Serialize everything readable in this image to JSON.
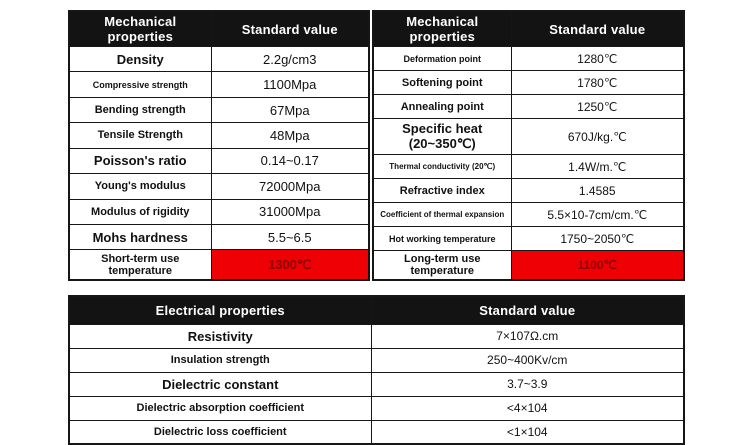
{
  "colors": {
    "border": "#161616",
    "header_bg": "#131313",
    "header_text": "#ffffff",
    "highlight_bg": "#ee0005",
    "highlight_text": "#8b0000"
  },
  "tables": {
    "mech_left": {
      "header": {
        "property": "Mechanical properties",
        "value": "Standard value"
      },
      "rows": [
        {
          "label": "Density",
          "value": "2.2g/cm3"
        },
        {
          "label": "Compressive strength",
          "value": "1100Mpa"
        },
        {
          "label": "Bending strength",
          "value": "67Mpa"
        },
        {
          "label": "Tensile Strength",
          "value": "48Mpa"
        },
        {
          "label": "Poisson's ratio",
          "value": "0.14~0.17"
        },
        {
          "label": "Young's modulus",
          "value": "72000Mpa"
        },
        {
          "label": "Modulus of rigidity",
          "value": "31000Mpa"
        },
        {
          "label": "Mohs hardness",
          "value": "5.5~6.5"
        },
        {
          "label": "Short-term use temperature",
          "value": "1300℃",
          "highlight": true
        }
      ]
    },
    "mech_right": {
      "header": {
        "property": "Mechanical properties",
        "value": "Standard value"
      },
      "rows": [
        {
          "label": "Deformation point",
          "value": "1280℃"
        },
        {
          "label": "Softening point",
          "value": "1780℃"
        },
        {
          "label": "Annealing point",
          "value": "1250℃"
        },
        {
          "label": "Specific heat (20~350℃)",
          "value": "670J/kg.℃"
        },
        {
          "label": "Thermal conductivity (20℃)",
          "value": "1.4W/m.℃"
        },
        {
          "label": "Refractive index",
          "value": "1.4585"
        },
        {
          "label": "Coefficient of thermal expansion",
          "value": "5.5×10-7cm/cm.℃"
        },
        {
          "label": "Hot working temperature",
          "value": "1750~2050℃"
        },
        {
          "label": "Long-term use temperature",
          "value": "1100℃",
          "highlight": true
        }
      ]
    },
    "electrical": {
      "header": {
        "property": "Electrical properties",
        "value": "Standard value"
      },
      "rows": [
        {
          "label": "Resistivity",
          "value": "7×107Ω.cm"
        },
        {
          "label": "Insulation strength",
          "value": "250~400Kv/cm"
        },
        {
          "label": "Dielectric constant",
          "value": "3.7~3.9"
        },
        {
          "label": "Dielectric absorption coefficient",
          "value": "<4×104"
        },
        {
          "label": "Dielectric loss coefficient",
          "value": "<1×104"
        }
      ]
    }
  }
}
